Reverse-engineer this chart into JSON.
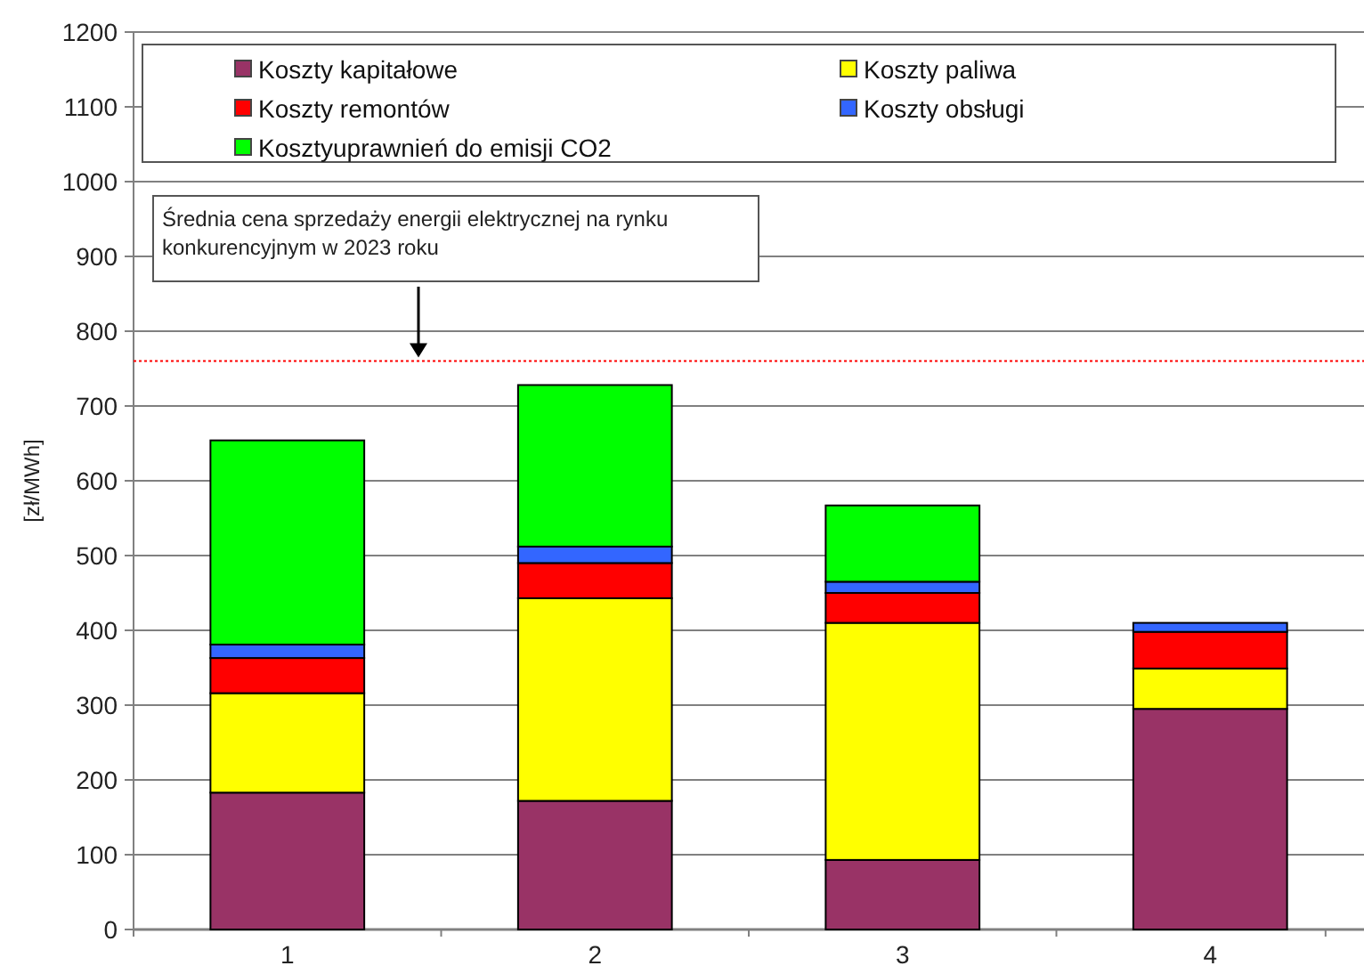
{
  "chart_data": {
    "type": "bar",
    "stacked": true,
    "ylabel": "[zł/MWh]",
    "categories": [
      "1",
      "2",
      "3",
      "4"
    ],
    "series": [
      {
        "name": "Koszty kapitałowe",
        "color": "#993366",
        "values": [
          183,
          172,
          93,
          295
        ]
      },
      {
        "name": "Koszty paliwa",
        "color": "#ffff00",
        "values": [
          133,
          271,
          317,
          54
        ]
      },
      {
        "name": "Koszty remontów",
        "color": "#ff0000",
        "values": [
          47,
          47,
          40,
          49
        ]
      },
      {
        "name": "Koszty obsługi",
        "color": "#3366ff",
        "values": [
          18,
          22,
          15,
          12
        ]
      },
      {
        "name": "Kosztyuprawnień do emisji CO2",
        "color": "#00ff00",
        "values": [
          273,
          216,
          102,
          0
        ]
      }
    ],
    "ylim": [
      0,
      1200
    ],
    "yticks": [
      0,
      100,
      200,
      300,
      400,
      500,
      600,
      700,
      800,
      900,
      1000,
      1100,
      1200
    ],
    "grid": "y",
    "legend": "top",
    "ref_lines": [
      {
        "axis": "y",
        "value": 760,
        "label": "Średnia cena sprzedaży energii elektrycznej na rynku konkurencyjnym w 2023 roku",
        "color": "#ff0000",
        "line_style": "dotted"
      }
    ]
  }
}
